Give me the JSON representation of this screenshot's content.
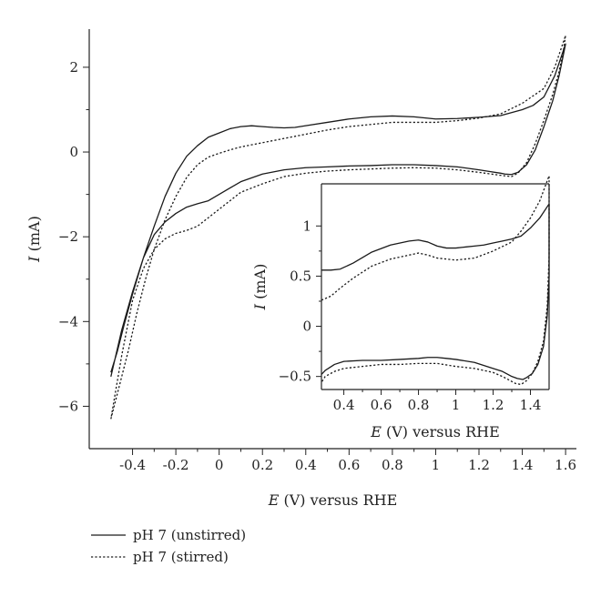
{
  "chart_data": [
    {
      "type": "line",
      "title": "",
      "xlabel": "(V) versus RHE",
      "xlabel_symbol": "E",
      "ylabel": "(mA)",
      "ylabel_symbol": "I",
      "xlim": [
        -0.6,
        1.65
      ],
      "ylim": [
        -7,
        2.9
      ],
      "xticks": [
        "-0.4",
        "-0.2",
        "0",
        "0.2",
        "0.4",
        "0.6",
        "0.8",
        "1",
        "1.2",
        "1.4",
        "1.6"
      ],
      "xtick_values": [
        -0.4,
        -0.2,
        0,
        0.2,
        0.4,
        0.6,
        0.8,
        1,
        1.2,
        1.4,
        1.6
      ],
      "yticks": [
        "2",
        "0",
        "−2",
        "−4",
        "−6"
      ],
      "ytick_values": [
        2,
        0,
        -2,
        -4,
        -6
      ],
      "legend": {
        "placement": "bottom-left"
      },
      "series": [
        {
          "name": "pH 7 (unstirred)",
          "style": "solid",
          "x": [
            -0.5,
            -0.47,
            -0.44,
            -0.4,
            -0.35,
            -0.3,
            -0.25,
            -0.2,
            -0.15,
            -0.1,
            -0.05,
            0,
            0.05,
            0.1,
            0.15,
            0.2,
            0.25,
            0.3,
            0.35,
            0.4,
            0.5,
            0.6,
            0.7,
            0.8,
            0.9,
            1.0,
            1.1,
            1.2,
            1.3,
            1.4,
            1.45,
            1.5,
            1.55,
            1.6,
            1.59,
            1.57,
            1.54,
            1.5,
            1.46,
            1.42,
            1.38,
            1.35,
            1.32,
            1.3,
            1.25,
            1.2,
            1.1,
            1.0,
            0.9,
            0.8,
            0.7,
            0.6,
            0.5,
            0.4,
            0.3,
            0.2,
            0.1,
            0.05,
            0,
            -0.05,
            -0.1,
            -0.15,
            -0.2,
            -0.25,
            -0.3,
            -0.35,
            -0.4,
            -0.45,
            -0.5
          ],
          "y": [
            -5.2,
            -4.7,
            -4.1,
            -3.35,
            -2.5,
            -1.75,
            -1.05,
            -0.5,
            -0.1,
            0.15,
            0.35,
            0.45,
            0.55,
            0.6,
            0.62,
            0.6,
            0.58,
            0.57,
            0.58,
            0.62,
            0.7,
            0.78,
            0.83,
            0.85,
            0.83,
            0.78,
            0.79,
            0.82,
            0.86,
            1.0,
            1.1,
            1.3,
            1.8,
            2.55,
            2.3,
            1.8,
            1.2,
            0.6,
            0.05,
            -0.3,
            -0.48,
            -0.53,
            -0.52,
            -0.5,
            -0.46,
            -0.42,
            -0.35,
            -0.32,
            -0.3,
            -0.3,
            -0.32,
            -0.33,
            -0.35,
            -0.37,
            -0.42,
            -0.52,
            -0.7,
            -0.85,
            -1.0,
            -1.15,
            -1.22,
            -1.3,
            -1.45,
            -1.65,
            -1.95,
            -2.5,
            -3.3,
            -4.2,
            -5.3
          ]
        },
        {
          "name": "pH 7 (stirred)",
          "style": "dotted",
          "x": [
            -0.5,
            -0.46,
            -0.42,
            -0.38,
            -0.34,
            -0.3,
            -0.25,
            -0.2,
            -0.15,
            -0.1,
            -0.05,
            0,
            0.05,
            0.1,
            0.2,
            0.3,
            0.4,
            0.5,
            0.6,
            0.7,
            0.8,
            0.9,
            1.0,
            1.1,
            1.2,
            1.3,
            1.4,
            1.5,
            1.55,
            1.6,
            1.59,
            1.57,
            1.54,
            1.5,
            1.46,
            1.42,
            1.38,
            1.35,
            1.3,
            1.2,
            1.1,
            1.0,
            0.9,
            0.8,
            0.7,
            0.6,
            0.5,
            0.4,
            0.3,
            0.2,
            0.1,
            0.05,
            0,
            -0.05,
            -0.1,
            -0.15,
            -0.2,
            -0.25,
            -0.3,
            -0.35,
            -0.4,
            -0.45,
            -0.5
          ],
          "y": [
            -6.3,
            -5.5,
            -4.7,
            -3.8,
            -3.0,
            -2.3,
            -1.6,
            -1.05,
            -0.6,
            -0.3,
            -0.12,
            -0.03,
            0.05,
            0.12,
            0.22,
            0.32,
            0.42,
            0.52,
            0.6,
            0.65,
            0.7,
            0.7,
            0.7,
            0.74,
            0.8,
            0.9,
            1.15,
            1.5,
            2.0,
            2.75,
            2.4,
            1.9,
            1.35,
            0.75,
            0.2,
            -0.25,
            -0.5,
            -0.58,
            -0.55,
            -0.48,
            -0.42,
            -0.38,
            -0.37,
            -0.38,
            -0.4,
            -0.42,
            -0.45,
            -0.5,
            -0.58,
            -0.75,
            -0.95,
            -1.15,
            -1.35,
            -1.55,
            -1.75,
            -1.85,
            -1.92,
            -2.05,
            -2.3,
            -2.75,
            -3.5,
            -4.8,
            -6.3
          ]
        }
      ]
    },
    {
      "type": "line",
      "title": "",
      "placement": "inset",
      "xlabel": "(V) versus RHE",
      "xlabel_symbol": "E",
      "ylabel": "(mA)",
      "ylabel_symbol": "I",
      "xlim": [
        0.28,
        1.5
      ],
      "ylim": [
        -0.63,
        1.42
      ],
      "xticks": [
        "0.4",
        "0.6",
        "0.8",
        "1",
        "1.2",
        "1.4"
      ],
      "xtick_values": [
        0.4,
        0.6,
        0.8,
        1,
        1.2,
        1.4
      ],
      "yticks": [
        "1",
        "0.5",
        "0",
        "−0.5"
      ],
      "ytick_values": [
        1,
        0.5,
        0,
        -0.5
      ],
      "series": [
        {
          "name": "pH 7 (unstirred)",
          "style": "solid",
          "x": [
            0.28,
            0.33,
            0.38,
            0.45,
            0.55,
            0.65,
            0.75,
            0.8,
            0.85,
            0.9,
            0.95,
            1.0,
            1.05,
            1.1,
            1.15,
            1.2,
            1.25,
            1.3,
            1.35,
            1.4,
            1.45,
            1.5,
            1.5,
            1.49,
            1.47,
            1.44,
            1.41,
            1.38,
            1.36,
            1.33,
            1.3,
            1.25,
            1.2,
            1.1,
            1.0,
            0.95,
            0.9,
            0.85,
            0.8,
            0.7,
            0.6,
            0.5,
            0.4,
            0.35,
            0.3,
            0.28
          ],
          "y": [
            0.56,
            0.56,
            0.57,
            0.63,
            0.74,
            0.81,
            0.85,
            0.86,
            0.84,
            0.8,
            0.78,
            0.78,
            0.79,
            0.8,
            0.81,
            0.83,
            0.85,
            0.87,
            0.9,
            0.98,
            1.08,
            1.22,
            0.5,
            0.1,
            -0.2,
            -0.38,
            -0.47,
            -0.51,
            -0.53,
            -0.52,
            -0.5,
            -0.45,
            -0.42,
            -0.36,
            -0.33,
            -0.32,
            -0.31,
            -0.31,
            -0.32,
            -0.33,
            -0.34,
            -0.34,
            -0.35,
            -0.38,
            -0.44,
            -0.48
          ]
        },
        {
          "name": "pH 7 (stirred)",
          "style": "dotted",
          "x": [
            0.28,
            0.33,
            0.38,
            0.45,
            0.55,
            0.65,
            0.75,
            0.8,
            0.85,
            0.9,
            1.0,
            1.1,
            1.2,
            1.3,
            1.35,
            1.4,
            1.45,
            1.5,
            1.5,
            1.49,
            1.47,
            1.44,
            1.41,
            1.38,
            1.35,
            1.32,
            1.3,
            1.25,
            1.2,
            1.1,
            1.0,
            0.9,
            0.8,
            0.7,
            0.6,
            0.5,
            0.4,
            0.35,
            0.3,
            0.28
          ],
          "y": [
            0.26,
            0.3,
            0.38,
            0.48,
            0.6,
            0.67,
            0.71,
            0.73,
            0.71,
            0.68,
            0.66,
            0.68,
            0.75,
            0.84,
            0.95,
            1.08,
            1.25,
            1.5,
            0.7,
            0.2,
            -0.15,
            -0.35,
            -0.47,
            -0.54,
            -0.58,
            -0.57,
            -0.55,
            -0.5,
            -0.46,
            -0.42,
            -0.4,
            -0.37,
            -0.37,
            -0.38,
            -0.38,
            -0.4,
            -0.42,
            -0.45,
            -0.5,
            -0.56
          ]
        }
      ]
    }
  ]
}
